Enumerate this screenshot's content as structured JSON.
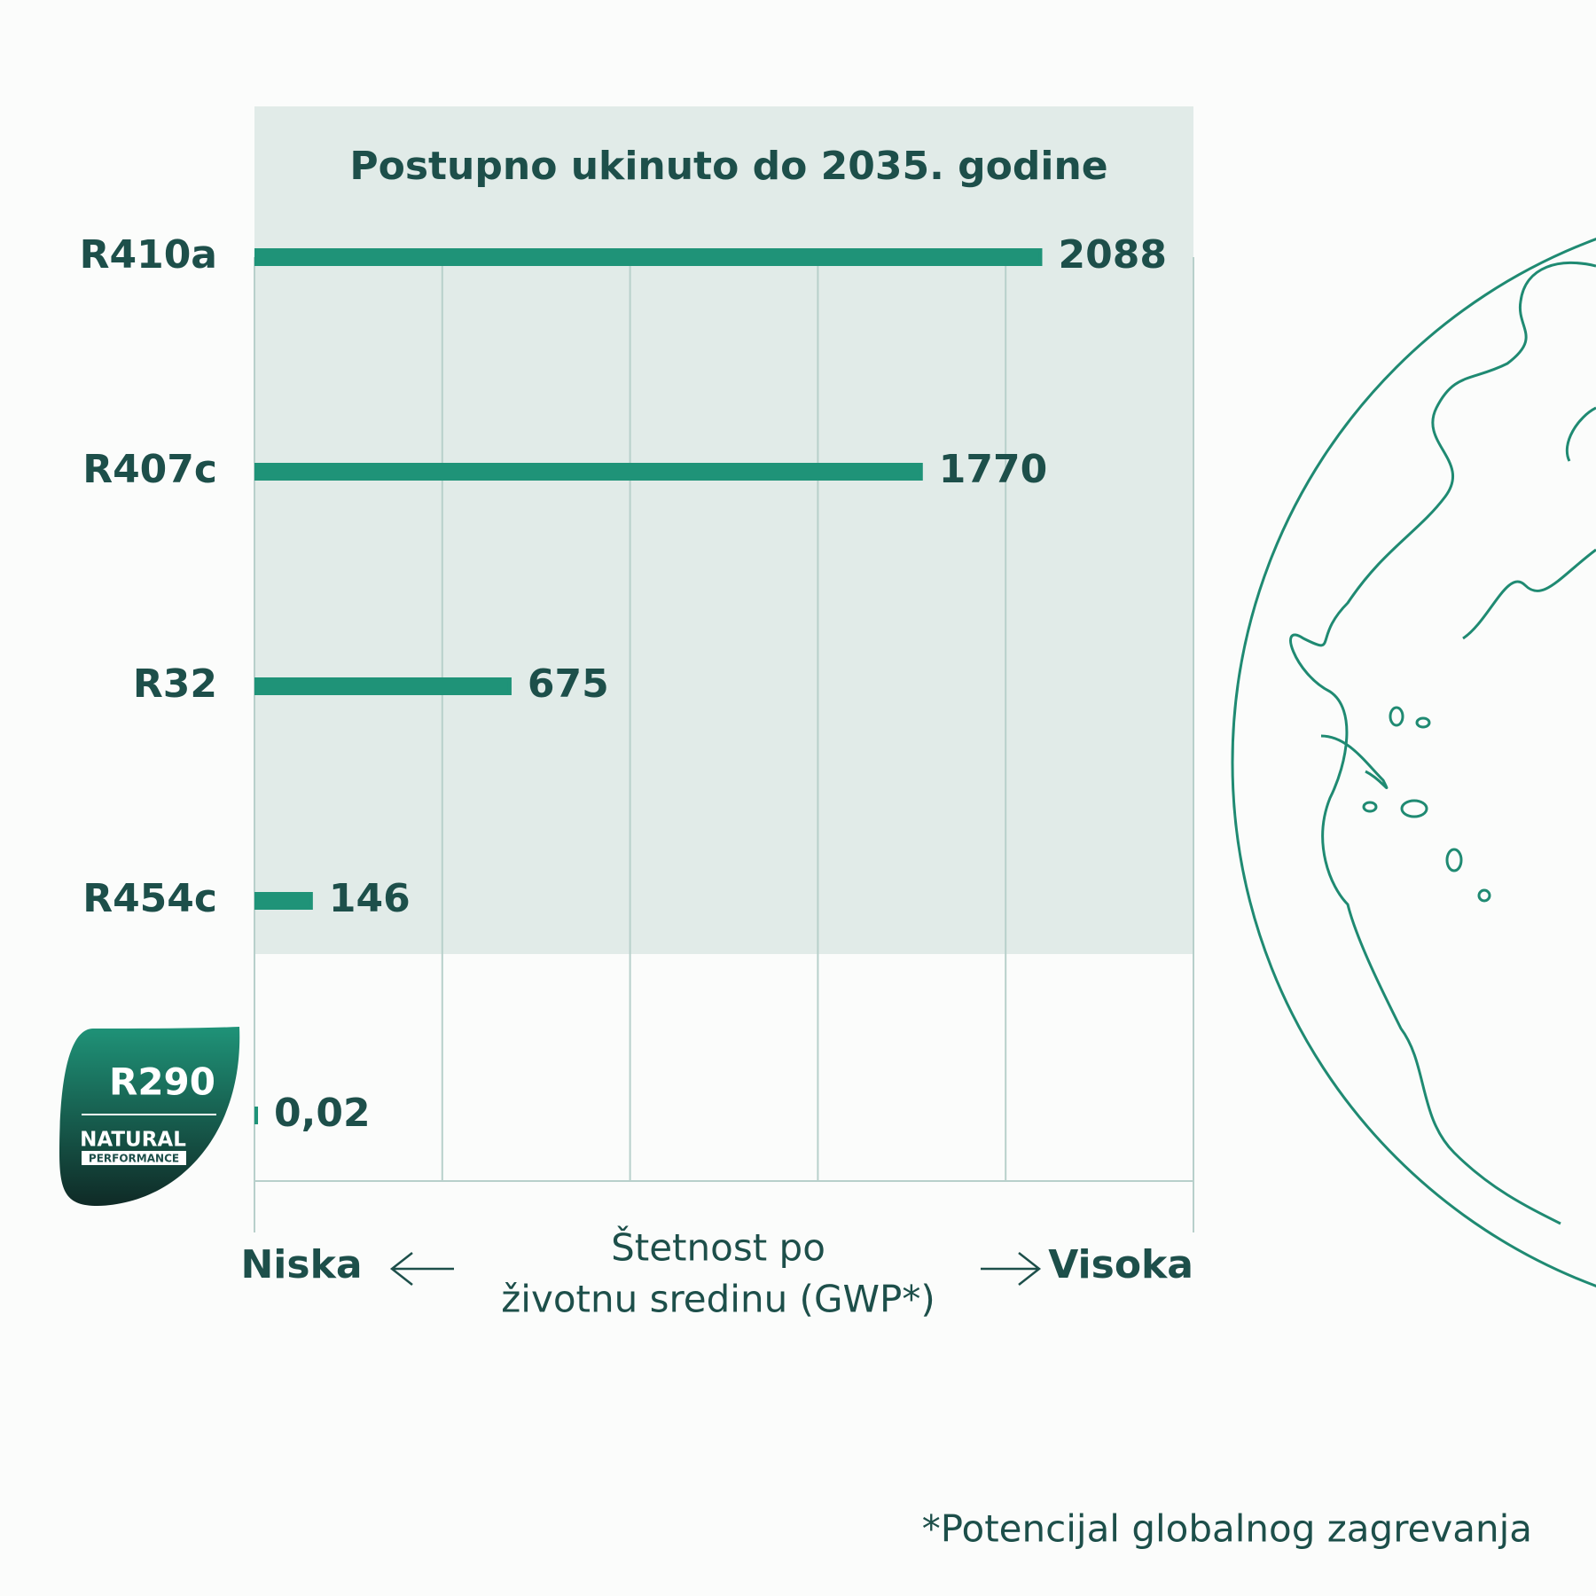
{
  "chart_data": {
    "type": "barh",
    "title": "Postupno ukinuto do 2035. godine",
    "categories": [
      "R410a",
      "R407c",
      "R32",
      "R454c",
      "R290"
    ],
    "values": [
      2088,
      1770,
      675,
      146,
      0.02
    ],
    "value_labels": [
      "2088",
      "1770",
      "675",
      "146",
      "0,02"
    ],
    "color": "#1f9378",
    "xlim": [
      0,
      2500
    ],
    "xticks": [
      0,
      500,
      1000,
      1500,
      2000,
      2500
    ],
    "grid": true,
    "xlabel": [
      "Štetnost po",
      "životnu sredinu (GWP*)"
    ],
    "low_label": "Niska",
    "high_label": "Visoka",
    "badge": [
      "NATURAL",
      "PERFORMANCE"
    ],
    "footnote": "*Potencijal globalnog zagrevanja"
  }
}
